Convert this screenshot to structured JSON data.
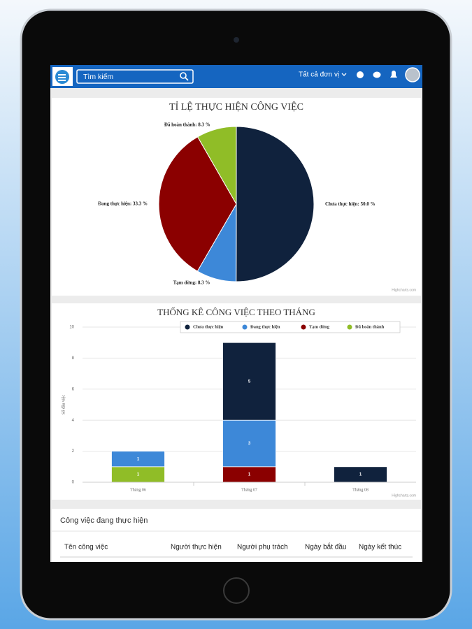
{
  "header": {
    "search_placeholder": "Tìm kiếm",
    "unit_filter": "Tất cả đơn vị"
  },
  "chart_data": [
    {
      "type": "pie",
      "title": "TỈ LỆ THỰC HIỆN CÔNG VIỆC",
      "categories": [
        "Chưa thực hiện",
        "Tạm dừng",
        "Đang thực hiện",
        "Đã hoàn thành"
      ],
      "values": [
        50.0,
        8.3,
        33.3,
        8.3
      ],
      "value_labels": [
        "Chưa thực hiện: 50.0 %",
        "Tạm dừng: 8.3 %",
        "Đang thực hiện: 33.3 %",
        "Đã hoàn thành: 8.3 %"
      ],
      "colors": [
        "#10223d",
        "#3d88d8",
        "#8b0000",
        "#90bd27"
      ],
      "credit": "Highcharts.com"
    },
    {
      "type": "bar",
      "stacked": true,
      "title": "THỐNG KÊ CÔNG VIỆC THEO THÁNG",
      "y_label": "Số đầu việc",
      "categories": [
        "Tháng 06",
        "Tháng 07",
        "Tháng 08"
      ],
      "series": [
        {
          "name": "Chưa thực hiện",
          "color": "#10223d",
          "values": [
            0,
            5,
            1
          ]
        },
        {
          "name": "Đang thực hiện",
          "color": "#3d88d8",
          "values": [
            1,
            3,
            0
          ]
        },
        {
          "name": "Tạm dừng",
          "color": "#8b0000",
          "values": [
            0,
            1,
            0
          ]
        },
        {
          "name": "Đã hoàn thành",
          "color": "#90bd27",
          "values": [
            1,
            0,
            0
          ]
        }
      ],
      "ylim": [
        0,
        10
      ],
      "yticks": [
        0,
        2,
        4,
        6,
        8,
        10
      ],
      "grid": true,
      "legend": "top",
      "credit": "Highcharts.com"
    }
  ],
  "table": {
    "title": "Công việc đang thực hiện",
    "columns": [
      "Tên công việc",
      "Người thực hiện",
      "Người phụ trách",
      "Ngày bắt đầu",
      "Ngày kết thúc"
    ]
  }
}
